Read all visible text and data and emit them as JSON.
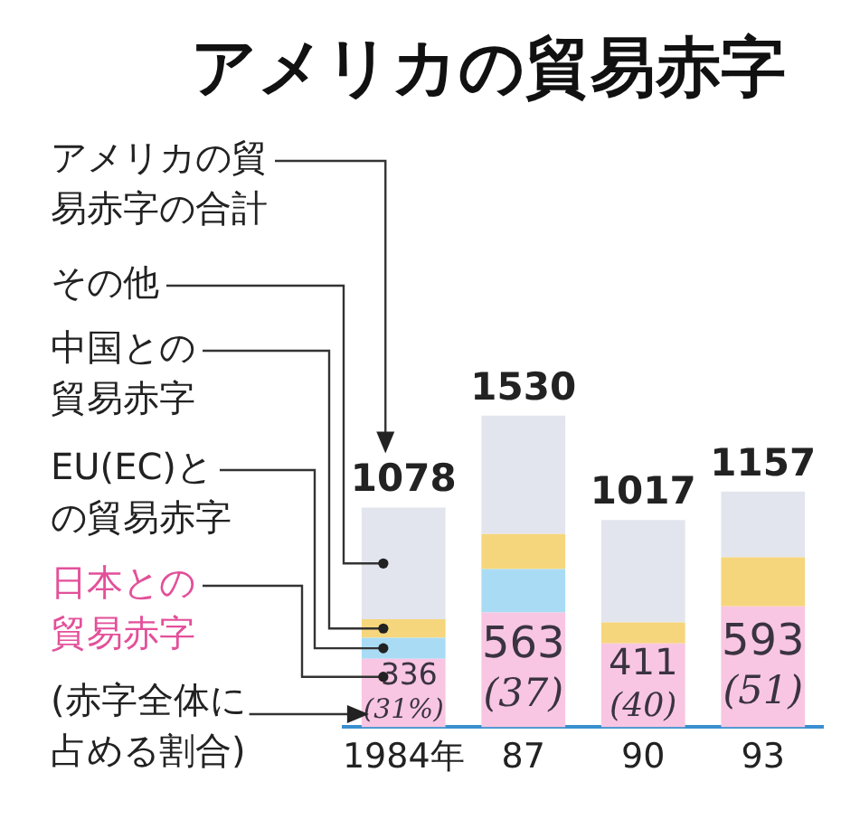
{
  "chart_data": {
    "type": "bar",
    "title": "アメリカの貿易赤字",
    "stacked": true,
    "legend": "left",
    "categories": [
      "1984年",
      "87",
      "90",
      "93"
    ],
    "series": [
      {
        "name": "日本との貿易赤字",
        "color": "#f8c6e2",
        "values": [
          336,
          563,
          411,
          593
        ],
        "value_labels": [
          "336 (31%)",
          "563 (37)",
          "411 (40)",
          "593 (51)"
        ]
      },
      {
        "name": "EU(EC)との貿易赤字",
        "color": "#a9dcf4",
        "values": [
          103,
          213,
          0,
          0
        ]
      },
      {
        "name": "中国との貿易赤字",
        "color": "#f6d67c",
        "values": [
          91,
          172,
          103,
          241
        ]
      },
      {
        "name": "その他",
        "color": "#e3e5ee",
        "values": [
          548,
          582,
          503,
          323
        ]
      }
    ],
    "totals": [
      "1078",
      "1530",
      "1017",
      "1157"
    ],
    "annotations": [
      "アメリカの貿易赤字の合計",
      "(赤字全体に占める割合)"
    ]
  }
}
